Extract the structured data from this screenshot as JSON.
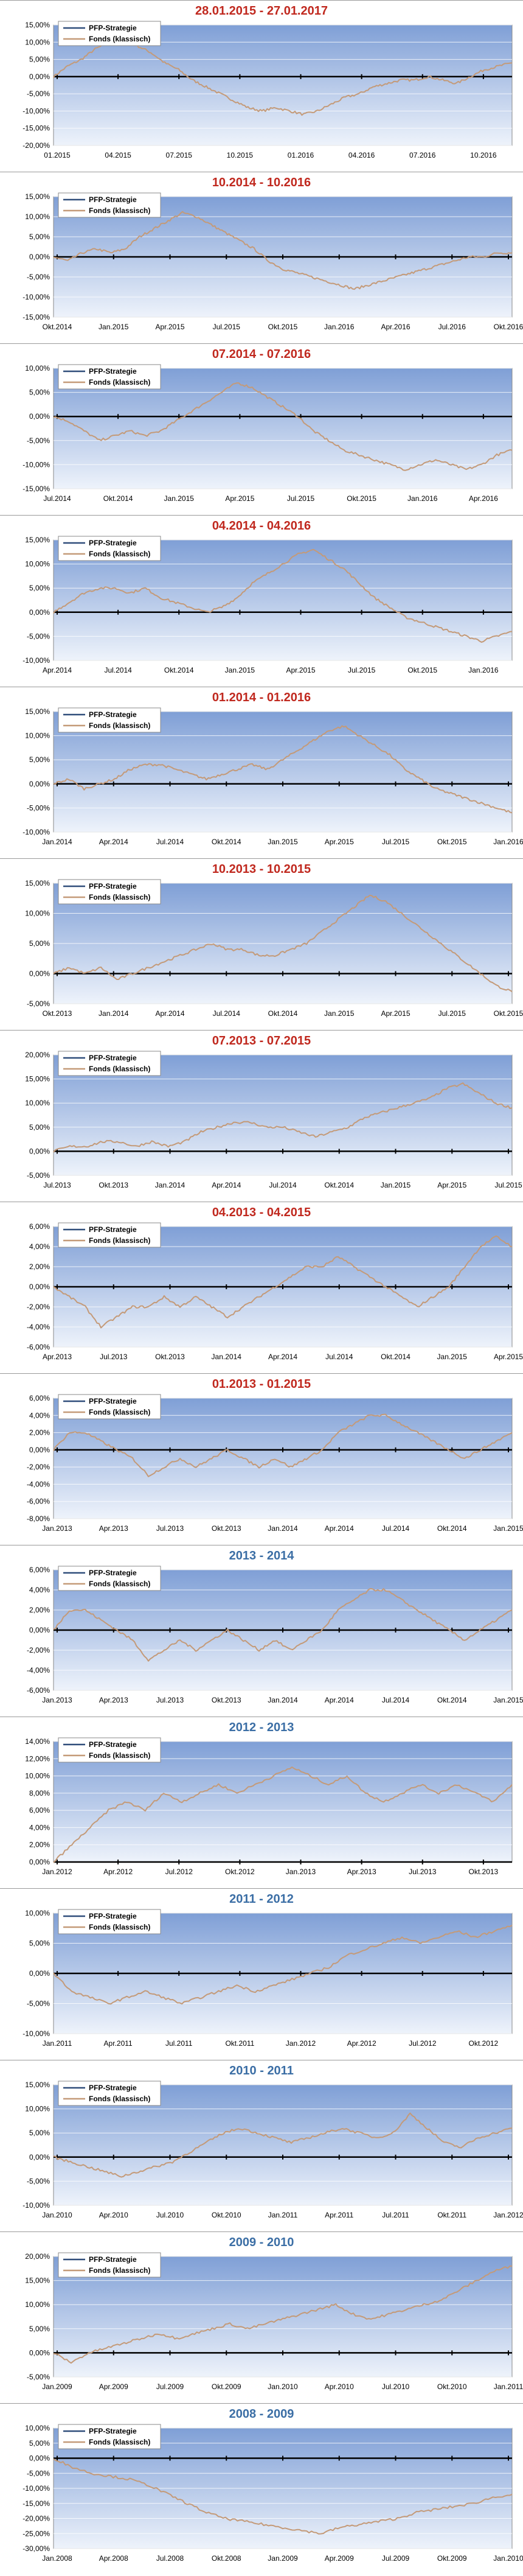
{
  "colors": {
    "title_red": "#c0281e",
    "title_blue": "#3b6ea5",
    "fund_line": "#c49a78",
    "pfp_line": "#2f4d7a",
    "zero_line": "#000000",
    "plot_top": "#7f9fd6",
    "plot_bottom": "#eef3fb",
    "grid": "#ffffff"
  },
  "legend": [
    "PFP-Strategie",
    "Fonds (klassisch)"
  ],
  "chart_data": [
    {
      "type": "line",
      "title": "28.01.2015 - 27.01.2017",
      "title_color": "red",
      "y_ticks": [
        "15,00%",
        "10,00%",
        "5,00%",
        "0,00%",
        "-5,00%",
        "-10,00%",
        "-15,00%",
        "-20,00%"
      ],
      "ylim": [
        -20,
        15
      ],
      "x_ticks": [
        "01.2015",
        "04.2015",
        "07.2015",
        "10.2015",
        "01.2016",
        "04.2016",
        "07.2016",
        "10.2016"
      ],
      "series": [
        {
          "name": "Fonds (klassisch)",
          "values": [
            0,
            3,
            5,
            8,
            10,
            11,
            9,
            7,
            4,
            2,
            -1,
            -3,
            -5,
            -7,
            -9,
            -10,
            -9,
            -10,
            -11,
            -10,
            -8,
            -6,
            -5,
            -3,
            -2,
            -1,
            -1,
            0,
            -1,
            -2,
            0,
            2,
            3,
            4
          ]
        }
      ]
    },
    {
      "type": "line",
      "title": "10.2014 - 10.2016",
      "title_color": "red",
      "y_ticks": [
        "15,00%",
        "10,00%",
        "5,00%",
        "0,00%",
        "-5,00%",
        "-10,00%",
        "-15,00%"
      ],
      "ylim": [
        -15,
        15
      ],
      "x_ticks": [
        "Okt.2014",
        "Jan.2015",
        "Apr.2015",
        "Jul.2015",
        "Okt.2015",
        "Jan.2016",
        "Apr.2016",
        "Jul.2016",
        "Okt.2016"
      ],
      "series": [
        {
          "name": "Fonds (klassisch)",
          "values": [
            0,
            -1,
            1,
            2,
            1,
            2,
            5,
            7,
            9,
            11,
            10,
            8,
            6,
            4,
            2,
            -1,
            -3,
            -4,
            -5,
            -6,
            -7,
            -8,
            -7,
            -6,
            -5,
            -4,
            -3,
            -2,
            -1,
            0,
            0,
            1,
            1
          ]
        }
      ]
    },
    {
      "type": "line",
      "title": "07.2014 - 07.2016",
      "title_color": "red",
      "y_ticks": [
        "10,00%",
        "5,00%",
        "0,00%",
        "-5,00%",
        "-10,00%",
        "-15,00%"
      ],
      "ylim": [
        -15,
        10
      ],
      "x_ticks": [
        "Jul.2014",
        "Okt.2014",
        "Jan.2015",
        "Apr.2015",
        "Jul.2015",
        "Okt.2015",
        "Jan.2016",
        "Apr.2016"
      ],
      "series": [
        {
          "name": "Fonds (klassisch)",
          "values": [
            0,
            -1,
            -3,
            -5,
            -4,
            -3,
            -4,
            -3,
            -1,
            1,
            3,
            5,
            7,
            6,
            4,
            2,
            0,
            -3,
            -5,
            -7,
            -8,
            -9,
            -10,
            -11,
            -10,
            -9,
            -10,
            -11,
            -10,
            -8,
            -7
          ]
        }
      ]
    },
    {
      "type": "line",
      "title": "04.2014 - 04.2016",
      "title_color": "red",
      "y_ticks": [
        "15,00%",
        "10,00%",
        "5,00%",
        "0,00%",
        "-5,00%",
        "-10,00%"
      ],
      "ylim": [
        -10,
        15
      ],
      "x_ticks": [
        "Apr.2014",
        "Jul.2014",
        "Okt.2014",
        "Jan.2015",
        "Apr.2015",
        "Jul.2015",
        "Okt.2015",
        "Jan.2016"
      ],
      "series": [
        {
          "name": "Fonds (klassisch)",
          "values": [
            0,
            2,
            4,
            5,
            5,
            4,
            5,
            3,
            2,
            1,
            0,
            1,
            3,
            6,
            8,
            10,
            12,
            13,
            11,
            9,
            6,
            3,
            1,
            -1,
            -2,
            -3,
            -4,
            -5,
            -6,
            -5,
            -4
          ]
        }
      ]
    },
    {
      "type": "line",
      "title": "01.2014 - 01.2016",
      "title_color": "red",
      "y_ticks": [
        "15,00%",
        "10,00%",
        "5,00%",
        "0,00%",
        "-5,00%",
        "-10,00%"
      ],
      "ylim": [
        -10,
        15
      ],
      "x_ticks": [
        "Jan.2014",
        "Apr.2014",
        "Jul.2014",
        "Okt.2014",
        "Jan.2015",
        "Apr.2015",
        "Jul.2015",
        "Okt.2015",
        "Jan.2016"
      ],
      "series": [
        {
          "name": "Fonds (klassisch)",
          "values": [
            0,
            1,
            -1,
            0,
            1,
            3,
            4,
            4,
            3,
            2,
            1,
            2,
            3,
            4,
            3,
            5,
            7,
            9,
            11,
            12,
            10,
            8,
            6,
            3,
            1,
            -1,
            -2,
            -3,
            -4,
            -5,
            -6
          ]
        }
      ]
    },
    {
      "type": "line",
      "title": "10.2013 - 10.2015",
      "title_color": "red",
      "y_ticks": [
        "15,00%",
        "10,00%",
        "5,00%",
        "0,00%",
        "-5,00%"
      ],
      "ylim": [
        -5,
        15
      ],
      "x_ticks": [
        "Okt.2013",
        "Jan.2014",
        "Apr.2014",
        "Jul.2014",
        "Okt.2014",
        "Jan.2015",
        "Apr.2015",
        "Jul.2015",
        "Okt.2015"
      ],
      "series": [
        {
          "name": "Fonds (klassisch)",
          "values": [
            0,
            1,
            0,
            1,
            -1,
            0,
            1,
            2,
            3,
            4,
            5,
            4,
            4,
            3,
            3,
            4,
            5,
            7,
            9,
            11,
            13,
            12,
            10,
            8,
            6,
            4,
            2,
            0,
            -2,
            -3
          ]
        }
      ]
    },
    {
      "type": "line",
      "title": "07.2013 - 07.2015",
      "title_color": "red",
      "y_ticks": [
        "20,00%",
        "15,00%",
        "10,00%",
        "5,00%",
        "0,00%",
        "-5,00%"
      ],
      "ylim": [
        -5,
        20
      ],
      "x_ticks": [
        "Jul.2013",
        "Okt.2013",
        "Jan.2014",
        "Apr.2014",
        "Jul.2014",
        "Okt.2014",
        "Jan.2015",
        "Apr.2015",
        "Jul.2015"
      ],
      "series": [
        {
          "name": "Fonds (klassisch)",
          "values": [
            0,
            1,
            1,
            2,
            2,
            1,
            2,
            1,
            2,
            4,
            5,
            6,
            6,
            5,
            5,
            4,
            3,
            4,
            5,
            7,
            8,
            9,
            10,
            11,
            13,
            14,
            12,
            10,
            9
          ]
        }
      ]
    },
    {
      "type": "line",
      "title": "04.2013 - 04.2015",
      "title_color": "red",
      "y_ticks": [
        "6,00%",
        "4,00%",
        "2,00%",
        "0,00%",
        "-2,00%",
        "-4,00%",
        "-6,00%"
      ],
      "ylim": [
        -6,
        6
      ],
      "x_ticks": [
        "Apr.2013",
        "Jul.2013",
        "Okt.2013",
        "Jan.2014",
        "Apr.2014",
        "Jul.2014",
        "Okt.2014",
        "Jan.2015",
        "Apr.2015"
      ],
      "series": [
        {
          "name": "Fonds (klassisch)",
          "values": [
            0,
            -1,
            -2,
            -4,
            -3,
            -2,
            -2,
            -1,
            -2,
            -1,
            -2,
            -3,
            -2,
            -1,
            0,
            1,
            2,
            2,
            3,
            2,
            1,
            0,
            -1,
            -2,
            -1,
            0,
            2,
            4,
            5,
            4
          ]
        }
      ]
    },
    {
      "type": "line",
      "title": "01.2013 - 01.2015",
      "title_color": "red",
      "y_ticks": [
        "6,00%",
        "4,00%",
        "2,00%",
        "0,00%",
        "-2,00%",
        "-4,00%",
        "-6,00%",
        "-8,00%"
      ],
      "ylim": [
        -8,
        6
      ],
      "x_ticks": [
        "Jan.2013",
        "Apr.2013",
        "Jul.2013",
        "Okt.2013",
        "Jan.2014",
        "Apr.2014",
        "Jul.2014",
        "Okt.2014",
        "Jan.2015"
      ],
      "series": [
        {
          "name": "Fonds (klassisch)",
          "values": [
            0,
            2,
            2,
            1,
            0,
            -1,
            -3,
            -2,
            -1,
            -2,
            -1,
            0,
            -1,
            -2,
            -1,
            -2,
            -1,
            0,
            2,
            3,
            4,
            4,
            3,
            2,
            1,
            0,
            -1,
            0,
            1,
            2
          ]
        }
      ]
    },
    {
      "type": "line",
      "title": "2013 - 2014",
      "title_color": "blue",
      "y_ticks": [
        "6,00%",
        "4,00%",
        "2,00%",
        "0,00%",
        "-2,00%",
        "-4,00%",
        "-6,00%"
      ],
      "ylim": [
        -6,
        6
      ],
      "x_ticks": [
        "Jan.2013",
        "Apr.2013",
        "Jul.2013",
        "Okt.2013",
        "Jan.2014",
        "Apr.2014",
        "Jul.2014",
        "Okt.2014",
        "Jan.2015"
      ],
      "series": [
        {
          "name": "Fonds (klassisch)",
          "values": [
            0,
            2,
            2,
            1,
            0,
            -1,
            -3,
            -2,
            -1,
            -2,
            -1,
            0,
            -1,
            -2,
            -1,
            -2,
            -1,
            0,
            2,
            3,
            4,
            4,
            3,
            2,
            1,
            0,
            -1,
            0,
            1,
            2
          ]
        }
      ]
    },
    {
      "type": "line",
      "title": "2012 - 2013",
      "title_color": "blue",
      "y_ticks": [
        "14,00%",
        "12,00%",
        "10,00%",
        "8,00%",
        "6,00%",
        "4,00%",
        "2,00%",
        "0,00%"
      ],
      "ylim": [
        0,
        14
      ],
      "x_ticks": [
        "Jan.2012",
        "Apr.2012",
        "Jul.2012",
        "Okt.2012",
        "Jan.2013",
        "Apr.2013",
        "Jul.2013",
        "Okt.2013"
      ],
      "series": [
        {
          "name": "Fonds (klassisch)",
          "values": [
            0,
            2,
            4,
            6,
            7,
            6,
            8,
            7,
            8,
            9,
            8,
            9,
            10,
            11,
            10,
            9,
            10,
            8,
            7,
            8,
            9,
            8,
            9,
            8,
            7,
            9
          ]
        }
      ]
    },
    {
      "type": "line",
      "title": "2011 - 2012",
      "title_color": "blue",
      "y_ticks": [
        "10,00%",
        "5,00%",
        "0,00%",
        "-5,00%",
        "-10,00%"
      ],
      "ylim": [
        -10,
        10
      ],
      "x_ticks": [
        "Jan.2011",
        "Apr.2011",
        "Jul.2011",
        "Okt.2011",
        "Jan.2012",
        "Apr.2012",
        "Jul.2012",
        "Okt.2012"
      ],
      "series": [
        {
          "name": "Fonds (klassisch)",
          "values": [
            0,
            -3,
            -4,
            -5,
            -4,
            -3,
            -4,
            -5,
            -4,
            -3,
            -2,
            -3,
            -2,
            -1,
            0,
            1,
            3,
            4,
            5,
            6,
            5,
            6,
            7,
            6,
            7,
            8
          ]
        }
      ]
    },
    {
      "type": "line",
      "title": "2010 - 2011",
      "title_color": "blue",
      "y_ticks": [
        "15,00%",
        "10,00%",
        "5,00%",
        "0,00%",
        "-5,00%",
        "-10,00%"
      ],
      "ylim": [
        -10,
        15
      ],
      "x_ticks": [
        "Jan.2010",
        "Apr.2010",
        "Jul.2010",
        "Okt.2010",
        "Jan.2011",
        "Apr.2011",
        "Jul.2011",
        "Okt.2011",
        "Jan.2012"
      ],
      "series": [
        {
          "name": "Fonds (klassisch)",
          "values": [
            0,
            -1,
            -2,
            -3,
            -4,
            -3,
            -2,
            -1,
            1,
            3,
            5,
            6,
            5,
            4,
            3,
            4,
            5,
            6,
            5,
            4,
            5,
            9,
            6,
            3,
            2,
            4,
            5,
            6
          ]
        }
      ]
    },
    {
      "type": "line",
      "title": "2009 - 2010",
      "title_color": "blue",
      "y_ticks": [
        "20,00%",
        "15,00%",
        "10,00%",
        "5,00%",
        "0,00%",
        "-5,00%"
      ],
      "ylim": [
        -5,
        20
      ],
      "x_ticks": [
        "Jan.2009",
        "Apr.2009",
        "Jul.2009",
        "Okt.2009",
        "Jan.2010",
        "Apr.2010",
        "Jul.2010",
        "Okt.2010",
        "Jan.2011"
      ],
      "series": [
        {
          "name": "Fonds (klassisch)",
          "values": [
            0,
            -2,
            0,
            1,
            2,
            3,
            4,
            3,
            4,
            5,
            6,
            5,
            6,
            7,
            8,
            9,
            10,
            8,
            7,
            8,
            9,
            10,
            11,
            13,
            15,
            17,
            18
          ]
        }
      ]
    },
    {
      "type": "line",
      "title": "2008 - 2009",
      "title_color": "blue",
      "y_ticks": [
        "10,00%",
        "5,00%",
        "0,00%",
        "-5,00%",
        "-10,00%",
        "-15,00%",
        "-20,00%",
        "-25,00%",
        "-30,00%"
      ],
      "ylim": [
        -30,
        10
      ],
      "x_ticks": [
        "Jan.2008",
        "Apr.2008",
        "Jul.2008",
        "Okt.2008",
        "Jan.2009",
        "Apr.2009",
        "Jul.2009",
        "Okt.2009",
        "Jan.2010"
      ],
      "series": [
        {
          "name": "Fonds (klassisch)",
          "values": [
            0,
            -3,
            -5,
            -6,
            -7,
            -9,
            -12,
            -15,
            -18,
            -20,
            -21,
            -22,
            -23,
            -24,
            -25,
            -23,
            -22,
            -21,
            -20,
            -18,
            -17,
            -16,
            -15,
            -13,
            -12
          ]
        }
      ]
    }
  ]
}
